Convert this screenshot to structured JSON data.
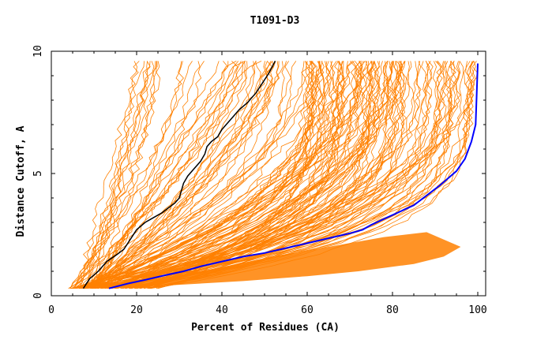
{
  "chart_data": {
    "type": "line",
    "title": "T1091-D3",
    "xlabel": "Percent of Residues (CA)",
    "ylabel": "Distance Cutoff, A",
    "xlim": [
      0,
      100
    ],
    "ylim": [
      0,
      10
    ],
    "xticks": [
      "0",
      "20",
      "40",
      "60",
      "80",
      "100"
    ],
    "yticks": [
      "0",
      "5",
      "10"
    ],
    "grid": false,
    "legend": "none",
    "colors": {
      "models": "#ff8000",
      "black_curve": "#000000",
      "blue_curve": "#0000ff",
      "background": "#ffffff"
    },
    "series": [
      {
        "color": "#000000",
        "x": [
          7.5,
          9,
          11,
          13,
          15.5,
          17,
          18.5,
          20,
          22,
          24,
          26,
          27.5,
          29,
          30,
          30.5,
          31,
          32,
          33.5,
          35,
          36,
          36.5,
          37.5,
          39,
          40,
          41,
          42.5,
          44,
          46,
          48,
          49.5,
          51,
          52.5
        ],
        "y": [
          0.3,
          0.7,
          1.0,
          1.4,
          1.7,
          1.9,
          2.3,
          2.7,
          3.0,
          3.2,
          3.4,
          3.6,
          3.8,
          4.0,
          4.3,
          4.6,
          4.9,
          5.2,
          5.5,
          5.8,
          6.1,
          6.3,
          6.5,
          6.8,
          7.0,
          7.3,
          7.6,
          7.9,
          8.3,
          8.7,
          9.1,
          9.6
        ]
      },
      {
        "color": "#0000ff",
        "x": [
          13.5,
          18,
          22,
          27,
          31,
          35,
          40,
          45,
          50,
          55,
          60,
          65,
          70,
          73,
          75,
          80,
          85,
          88,
          91,
          93,
          95,
          97,
          98.5,
          99.5,
          100
        ],
        "y": [
          0.3,
          0.5,
          0.65,
          0.85,
          1.0,
          1.2,
          1.4,
          1.6,
          1.75,
          1.95,
          2.15,
          2.35,
          2.55,
          2.7,
          2.9,
          3.3,
          3.7,
          4.1,
          4.5,
          4.8,
          5.1,
          5.6,
          6.3,
          7.0,
          9.5
        ]
      }
    ]
  }
}
